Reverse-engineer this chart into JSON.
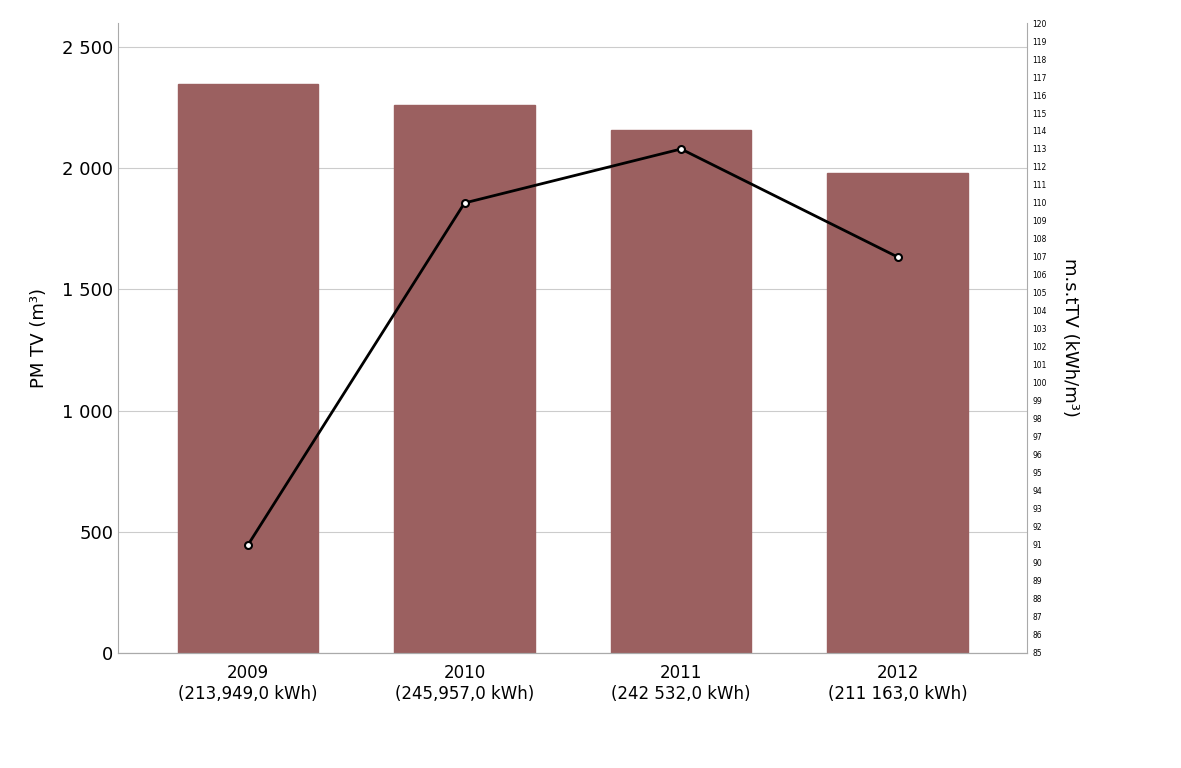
{
  "categories": [
    "2009\n(213,949,0 kWh)",
    "2010\n(245,957,0 kWh)",
    "2011\n(242 532,0 kWh)",
    "2012\n(211 163,0 kWh)"
  ],
  "bar_values": [
    2350,
    2260,
    2160,
    1980
  ],
  "line_values": [
    91,
    110,
    113,
    107
  ],
  "bar_color": "#9b6060",
  "line_color": "#000000",
  "left_ylabel": "PM TV (m³)",
  "right_ylabel": "m.s.tTV (kWh/m³)",
  "left_ylim": [
    0,
    2600
  ],
  "right_ylim": [
    85,
    120
  ],
  "left_yticks": [
    0,
    500,
    1000,
    1500,
    2000,
    2500
  ],
  "left_yticklabels": [
    "0",
    "500",
    "1 000",
    "1 500",
    "2 000",
    "2 500"
  ],
  "background_color": "#ffffff",
  "grid_color": "#cccccc",
  "figsize": [
    11.81,
    7.68
  ],
  "dpi": 100
}
